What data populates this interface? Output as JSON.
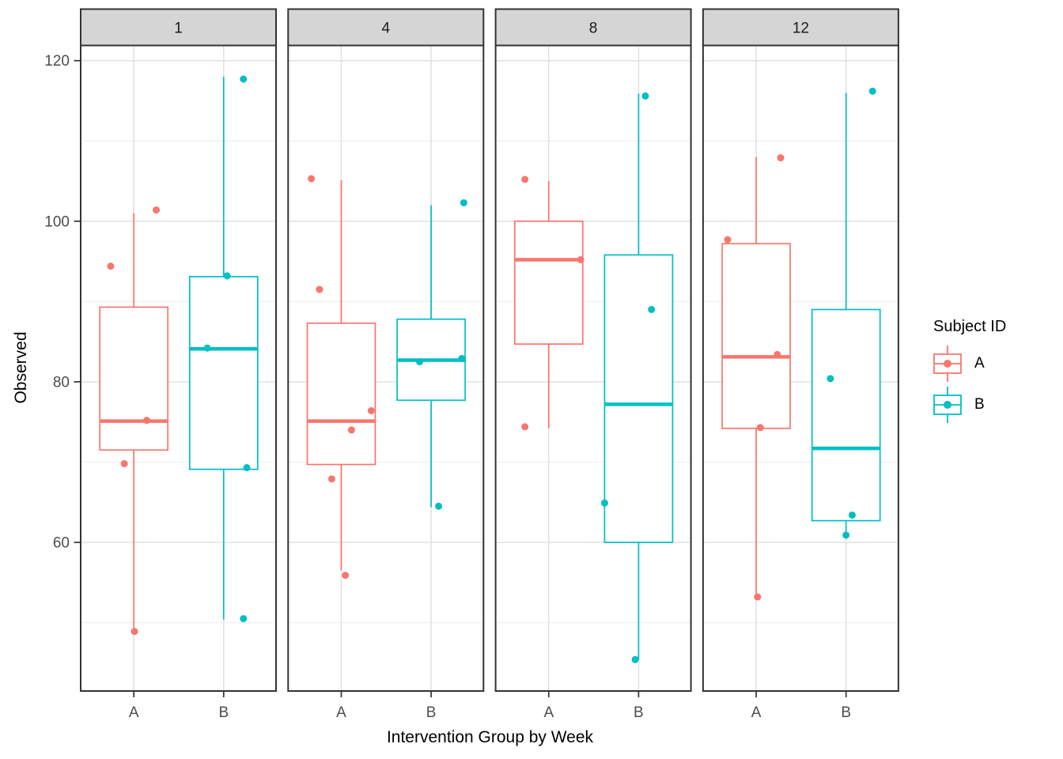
{
  "chart_data": {
    "type": "boxplot",
    "title": "",
    "xlabel": "Intervention Group by Week",
    "ylabel": "Observed",
    "categories": [
      "A",
      "B"
    ],
    "facet_labels": [
      "1",
      "4",
      "8",
      "12"
    ],
    "ylim": [
      41.5,
      122
    ],
    "yticks": [
      60,
      80,
      100,
      120
    ],
    "yticks_minor": [
      50,
      70,
      90,
      110
    ],
    "grid": "horizontal major+minor gridlines, vertical major gridline at each category",
    "legend": {
      "title": "Subject ID",
      "position": "right",
      "entries": [
        {
          "label": "A",
          "color": "#F8766D"
        },
        {
          "label": "B",
          "color": "#00BFC4"
        }
      ]
    },
    "style": {
      "panel_background": "#FFFFFF",
      "panel_border": "#333333",
      "strip_fill": "#D5D5D5",
      "grid_major": "#E2E2E2",
      "grid_minor": "#F0F0F0",
      "tick_label_color": "#4D4D4D",
      "strip_text_color": "#1A1A1A"
    },
    "facets": [
      {
        "label": "1",
        "boxes": [
          {
            "group": "A",
            "color": "#F8766D",
            "whisker_low": 49.1,
            "q1": 71.5,
            "median": 75.1,
            "q3": 89.3,
            "whisker_high": 101.0,
            "points": [
              {
                "v": 101.4,
                "jx": 0.33
              },
              {
                "v": 94.4,
                "jx": -0.34
              },
              {
                "v": 75.2,
                "jx": 0.19
              },
              {
                "v": 69.8,
                "jx": -0.14
              },
              {
                "v": 48.9,
                "jx": 0.01
              }
            ]
          },
          {
            "group": "B",
            "color": "#00BFC4",
            "whisker_low": 50.4,
            "q1": 69.1,
            "median": 84.1,
            "q3": 93.1,
            "whisker_high": 118.0,
            "points": [
              {
                "v": 117.7,
                "jx": 0.29
              },
              {
                "v": 93.2,
                "jx": 0.05
              },
              {
                "v": 84.2,
                "jx": -0.24
              },
              {
                "v": 69.3,
                "jx": 0.34
              },
              {
                "v": 50.5,
                "jx": 0.29
              }
            ]
          }
        ]
      },
      {
        "label": "4",
        "boxes": [
          {
            "group": "A",
            "color": "#F8766D",
            "whisker_low": 56.5,
            "q1": 69.7,
            "median": 75.1,
            "q3": 87.3,
            "whisker_high": 105.1,
            "points": [
              {
                "v": 105.3,
                "jx": -0.44
              },
              {
                "v": 91.5,
                "jx": -0.32
              },
              {
                "v": 76.4,
                "jx": 0.44
              },
              {
                "v": 74.0,
                "jx": 0.15
              },
              {
                "v": 67.9,
                "jx": -0.14
              },
              {
                "v": 55.9,
                "jx": 0.06
              }
            ]
          },
          {
            "group": "B",
            "color": "#00BFC4",
            "whisker_low": 64.4,
            "q1": 77.7,
            "median": 82.7,
            "q3": 87.8,
            "whisker_high": 102.0,
            "points": [
              {
                "v": 102.3,
                "jx": 0.48
              },
              {
                "v": 82.9,
                "jx": 0.45
              },
              {
                "v": 82.5,
                "jx": -0.17
              },
              {
                "v": 64.5,
                "jx": 0.11
              }
            ]
          }
        ]
      },
      {
        "label": "8",
        "boxes": [
          {
            "group": "A",
            "color": "#F8766D",
            "whisker_low": 74.2,
            "q1": 84.7,
            "median": 95.2,
            "q3": 100.0,
            "whisker_high": 105.0,
            "points": [
              {
                "v": 105.2,
                "jx": -0.35
              },
              {
                "v": 95.2,
                "jx": 0.47
              },
              {
                "v": 74.4,
                "jx": -0.35
              }
            ]
          },
          {
            "group": "B",
            "color": "#00BFC4",
            "whisker_low": 45.4,
            "q1": 60.0,
            "median": 77.2,
            "q3": 95.8,
            "whisker_high": 115.9,
            "points": [
              {
                "v": 115.6,
                "jx": 0.1
              },
              {
                "v": 89.0,
                "jx": 0.19
              },
              {
                "v": 64.9,
                "jx": -0.5
              },
              {
                "v": 45.4,
                "jx": -0.05
              }
            ]
          }
        ]
      },
      {
        "label": "12",
        "boxes": [
          {
            "group": "A",
            "color": "#F8766D",
            "whisker_low": 53.4,
            "q1": 74.2,
            "median": 83.1,
            "q3": 97.2,
            "whisker_high": 108.0,
            "points": [
              {
                "v": 107.9,
                "jx": 0.36
              },
              {
                "v": 97.7,
                "jx": -0.42
              },
              {
                "v": 83.4,
                "jx": 0.31
              },
              {
                "v": 74.3,
                "jx": 0.06
              },
              {
                "v": 53.2,
                "jx": 0.02
              }
            ]
          },
          {
            "group": "B",
            "color": "#00BFC4",
            "whisker_low": 61.2,
            "q1": 62.7,
            "median": 71.7,
            "q3": 89.0,
            "whisker_high": 116.0,
            "points": [
              {
                "v": 116.2,
                "jx": 0.39
              },
              {
                "v": 80.4,
                "jx": -0.23
              },
              {
                "v": 63.4,
                "jx": 0.09
              },
              {
                "v": 60.9,
                "jx": 0.0
              }
            ]
          }
        ]
      }
    ]
  }
}
